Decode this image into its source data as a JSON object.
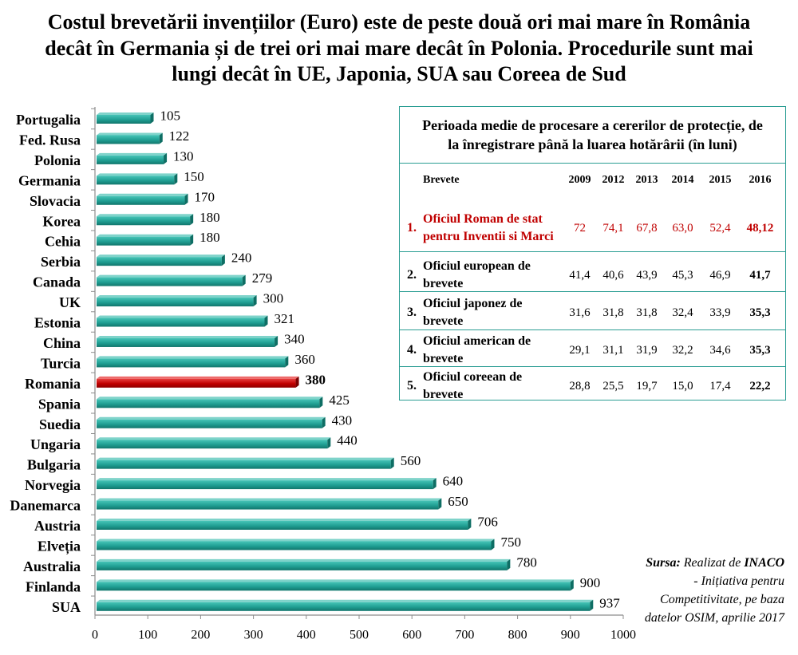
{
  "chart_data": {
    "type": "bar",
    "orientation": "horizontal",
    "title_lines": [
      "Costul brevetării invențiilor (Euro) este de peste două ori mai mare în România",
      "decât în Germania și de trei ori mai mare decât în Polonia. Procedurile sunt mai",
      "lungi decât în UE, Japonia, SUA sau Coreea de Sud"
    ],
    "xlabel": "",
    "ylabel": "",
    "categories": [
      "Portugalia",
      "Fed. Rusa",
      "Polonia",
      "Germania",
      "Slovacia",
      "Korea",
      "Cehia",
      "Serbia",
      "Canada",
      "UK",
      "Estonia",
      "China",
      "Turcia",
      "Romania",
      "Spania",
      "Suedia",
      "Ungaria",
      "Bulgaria",
      "Norvegia",
      "Danemarca",
      "Austria",
      "Elveția",
      "Australia",
      "Finlanda",
      "SUA"
    ],
    "values": [
      105,
      122,
      130,
      150,
      170,
      180,
      180,
      240,
      279,
      300,
      321,
      340,
      360,
      380,
      425,
      430,
      440,
      560,
      640,
      650,
      706,
      750,
      780,
      900,
      937
    ],
    "highlight_index": 13,
    "xlim": [
      0,
      1000
    ],
    "xticks": [
      0,
      100,
      200,
      300,
      400,
      500,
      600,
      700,
      800,
      900,
      1000
    ],
    "grid": false,
    "legend": "none",
    "data_labels": true,
    "colors": {
      "bar": "#1f9e92",
      "highlight": "#c00000",
      "axis": "#8c8c8c"
    }
  },
  "table": {
    "title_lines": [
      "Perioada medie de procesare a cererilor de protecție, de",
      "la înregistrare până la luarea hotărârii (în luni)"
    ],
    "header": {
      "label": "Brevete",
      "years": [
        "2009",
        "2012",
        "2013",
        "2014",
        "2015",
        "2016"
      ]
    },
    "rows": [
      {
        "num": "1.",
        "name_lines": [
          "Oficiul Roman de stat",
          "pentru Inventii si Marci"
        ],
        "values": [
          "72",
          "74,1",
          "67,8",
          "63,0",
          "52,4",
          "48,12"
        ],
        "highlight": true
      },
      {
        "num": "2.",
        "name_lines": [
          "Oficiul european de",
          "brevete"
        ],
        "values": [
          "41,4",
          "40,6",
          "43,9",
          "45,3",
          "46,9",
          "41,7"
        ],
        "highlight": false
      },
      {
        "num": "3.",
        "name_lines": [
          "Oficiul japonez de",
          "brevete"
        ],
        "values": [
          "31,6",
          "31,8",
          "31,8",
          "32,4",
          "33,9",
          "35,3"
        ],
        "highlight": false
      },
      {
        "num": "4.",
        "name_lines": [
          "Oficiul american de",
          "brevete"
        ],
        "values": [
          "29,1",
          "31,1",
          "31,9",
          "32,2",
          "34,6",
          "35,3"
        ],
        "highlight": false
      },
      {
        "num": "5.",
        "name_lines": [
          "Oficiul coreean de",
          "brevete"
        ],
        "values": [
          "28,8",
          "25,5",
          "19,7",
          "15,0",
          "17,4",
          "22,2"
        ],
        "highlight": false
      }
    ],
    "border_color": "#2a9d93",
    "highlight_color": "#c00000"
  },
  "source": {
    "label": "Sursa:",
    "text": "Realizat de",
    "org": "INACO",
    "lines": [
      "- Inițiativa pentru",
      "Competitivitate, pe baza",
      "datelor OSIM, aprilie 2017"
    ]
  }
}
